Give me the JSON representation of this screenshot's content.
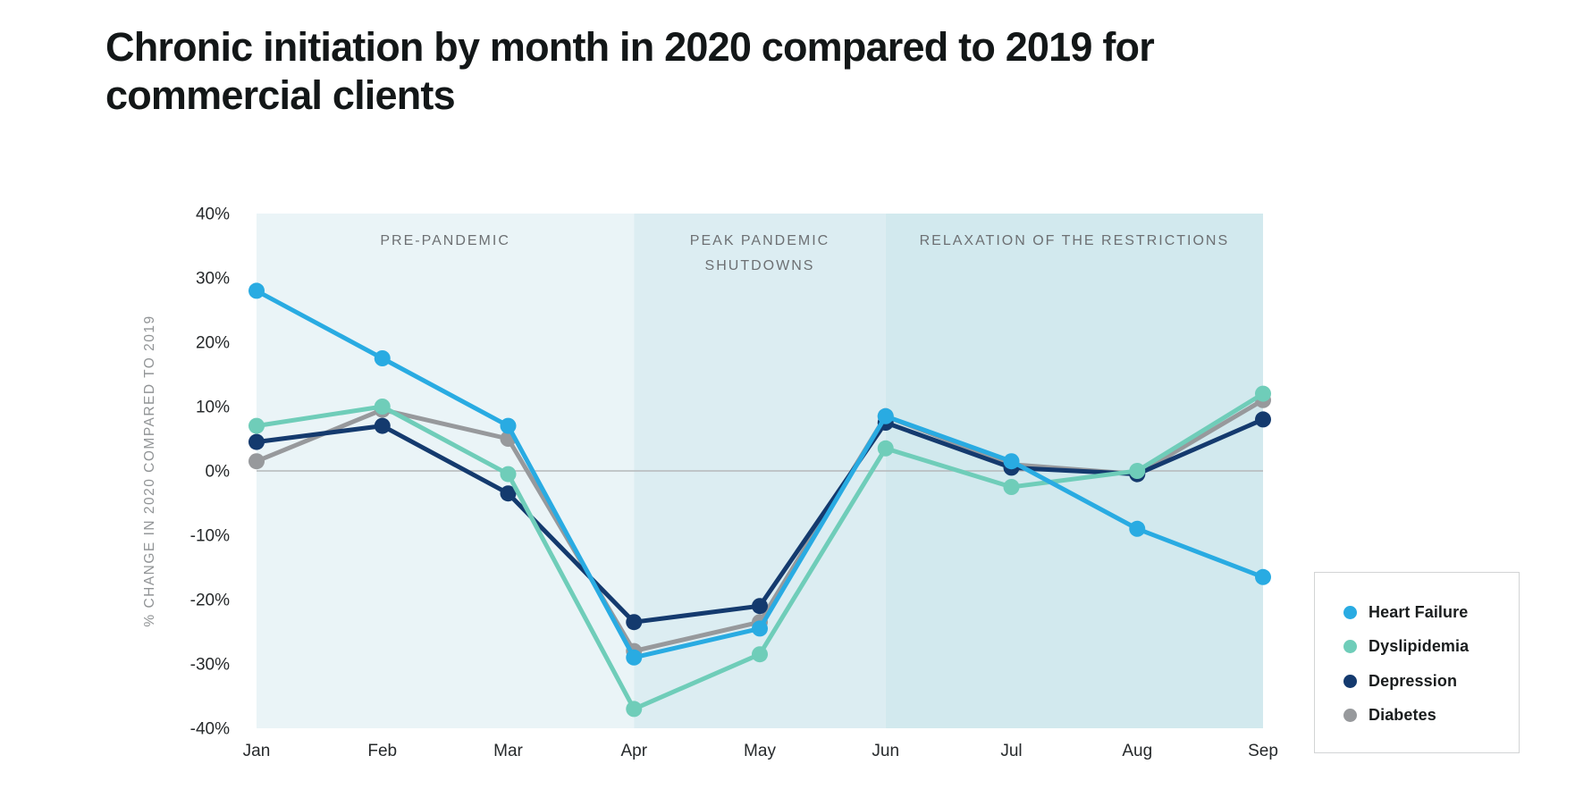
{
  "header": {
    "title_lines": [
      "Chronic initiation by month in 2020 compared to 2019 for",
      "commercial clients"
    ]
  },
  "chart_data": {
    "type": "line",
    "title": "Chronic initiation by month in 2020 compared to 2019 for commercial clients",
    "xlabel": "",
    "ylabel": "% CHANGE IN 2020 COMPARED TO 2019",
    "x_categories": [
      "Jan",
      "Feb",
      "Mar",
      "Apr",
      "May",
      "Jun",
      "Jul",
      "Aug",
      "Sep"
    ],
    "ylim": [
      -40,
      40
    ],
    "ytick_values": [
      40,
      30,
      20,
      10,
      0,
      -10,
      -20,
      -30,
      -40
    ],
    "ytick_labels": [
      "40%",
      "30%",
      "20%",
      "10%",
      "0%",
      "-10%",
      "-20%",
      "-30%",
      "-40%"
    ],
    "grid": "zero-line-only",
    "zero_line_color": "#b5b8ba",
    "regions": [
      {
        "label": "PRE-PANDEMIC",
        "label_lines": [
          "PRE-PANDEMIC"
        ],
        "from": "Jan",
        "to": "Apr",
        "color": "#eaf4f7"
      },
      {
        "label": "PEAK PANDEMIC SHUTDOWNS",
        "label_lines": [
          "PEAK PANDEMIC",
          "SHUTDOWNS"
        ],
        "from": "Apr",
        "to": "Jun",
        "color": "#dcedf2"
      },
      {
        "label": "RELAXATION OF THE RESTRICTIONS",
        "label_lines": [
          "RELAXATION OF THE RESTRICTIONS"
        ],
        "from": "Jun",
        "to": "Sep",
        "color": "#d2e9ee"
      }
    ],
    "series": [
      {
        "name": "Heart Failure",
        "color": "#29abe2",
        "values": [
          28,
          17.5,
          7,
          -29,
          -24.5,
          8.5,
          1.5,
          -9,
          -16.5
        ]
      },
      {
        "name": "Dyslipidemia",
        "color": "#6fcdb9",
        "values": [
          7,
          10,
          -0.5,
          -37,
          -28.5,
          3.5,
          -2.5,
          0,
          12
        ]
      },
      {
        "name": "Depression",
        "color": "#143a6e",
        "values": [
          4.5,
          7,
          -3.5,
          -23.5,
          -21,
          7.5,
          0.5,
          -0.5,
          8
        ]
      },
      {
        "name": "Diabetes",
        "color": "#97999c",
        "values": [
          1.5,
          9.5,
          5,
          -28,
          -23.5,
          8.5,
          1,
          -0.5,
          11
        ]
      }
    ],
    "legend_position": "bottom-right",
    "style": {
      "axis_text_color": "#26292b",
      "region_label_color": "#6d7073",
      "ylabel_color": "#919496",
      "line_width": 5,
      "marker_radius": 9
    }
  }
}
